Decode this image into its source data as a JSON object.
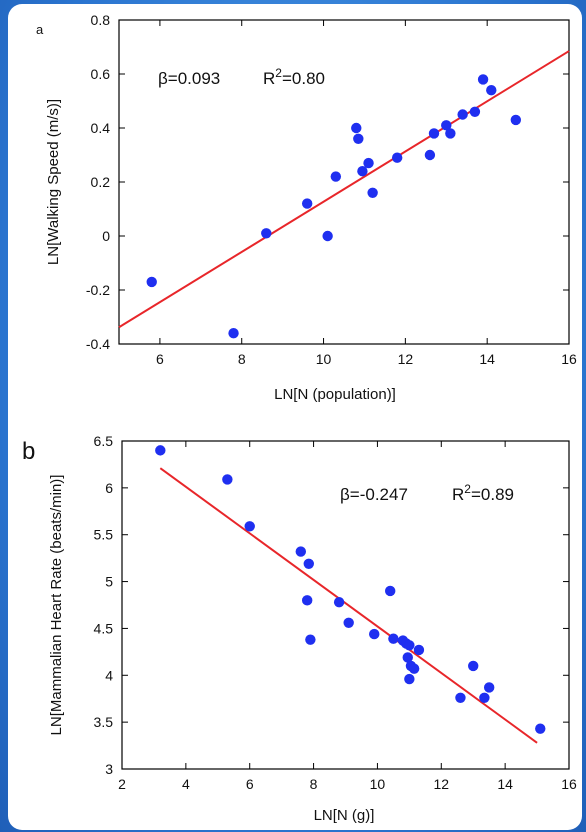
{
  "chart_data": [
    {
      "panel_label": "a",
      "type": "scatter",
      "xlabel": "LN[N (population)]",
      "ylabel": "LN[Walking Speed (m/s)]",
      "xlim": [
        5,
        16
      ],
      "ylim": [
        -0.4,
        0.8
      ],
      "xticks": [
        6,
        8,
        10,
        12,
        14,
        16
      ],
      "yticks": [
        -0.4,
        -0.2,
        0,
        0.2,
        0.4,
        0.6,
        0.8
      ],
      "annotation_beta": "β=0.093",
      "annotation_r2_prefix": "R",
      "annotation_r2_exp": "2",
      "annotation_r2_value": "=0.80",
      "point_color": "#1f2ff0",
      "line_color": "#e8262a",
      "fit_line": {
        "x": [
          5,
          16
        ],
        "y": [
          -0.338,
          0.685
        ]
      },
      "points": [
        {
          "x": 5.8,
          "y": -0.17
        },
        {
          "x": 7.8,
          "y": -0.36
        },
        {
          "x": 8.6,
          "y": 0.01
        },
        {
          "x": 9.6,
          "y": 0.12
        },
        {
          "x": 10.1,
          "y": 0.0
        },
        {
          "x": 10.3,
          "y": 0.22
        },
        {
          "x": 10.8,
          "y": 0.4
        },
        {
          "x": 10.85,
          "y": 0.36
        },
        {
          "x": 10.95,
          "y": 0.24
        },
        {
          "x": 11.1,
          "y": 0.27
        },
        {
          "x": 11.2,
          "y": 0.16
        },
        {
          "x": 11.8,
          "y": 0.29
        },
        {
          "x": 12.6,
          "y": 0.3
        },
        {
          "x": 12.7,
          "y": 0.38
        },
        {
          "x": 13.0,
          "y": 0.41
        },
        {
          "x": 13.1,
          "y": 0.38
        },
        {
          "x": 13.4,
          "y": 0.45
        },
        {
          "x": 13.7,
          "y": 0.46
        },
        {
          "x": 13.9,
          "y": 0.58
        },
        {
          "x": 14.1,
          "y": 0.54
        },
        {
          "x": 14.7,
          "y": 0.43
        }
      ]
    },
    {
      "panel_label": "b",
      "type": "scatter",
      "xlabel": "LN[N (g)]",
      "ylabel": "LN[Mammalian Heart Rate (beats/min)]",
      "xlim": [
        2,
        16
      ],
      "ylim": [
        3,
        6.5
      ],
      "xticks": [
        2,
        4,
        6,
        8,
        10,
        12,
        14,
        16
      ],
      "yticks": [
        3,
        3.5,
        4,
        4.5,
        5,
        5.5,
        6,
        6.5
      ],
      "annotation_beta": "β=-0.247",
      "annotation_r2_prefix": "R",
      "annotation_r2_exp": "2",
      "annotation_r2_value": "=0.89",
      "point_color": "#1f2ff0",
      "line_color": "#e8262a",
      "fit_line": {
        "x": [
          3.2,
          15.0
        ],
        "y": [
          6.21,
          3.28
        ]
      },
      "points": [
        {
          "x": 3.2,
          "y": 6.4
        },
        {
          "x": 5.3,
          "y": 6.09
        },
        {
          "x": 6.0,
          "y": 5.59
        },
        {
          "x": 7.6,
          "y": 5.32
        },
        {
          "x": 7.85,
          "y": 5.19
        },
        {
          "x": 7.8,
          "y": 4.8
        },
        {
          "x": 7.9,
          "y": 4.38
        },
        {
          "x": 8.8,
          "y": 4.78
        },
        {
          "x": 9.1,
          "y": 4.56
        },
        {
          "x": 9.9,
          "y": 4.44
        },
        {
          "x": 10.4,
          "y": 4.9
        },
        {
          "x": 10.5,
          "y": 4.39
        },
        {
          "x": 10.8,
          "y": 4.37
        },
        {
          "x": 10.9,
          "y": 4.34
        },
        {
          "x": 11.0,
          "y": 4.32
        },
        {
          "x": 10.95,
          "y": 4.19
        },
        {
          "x": 11.05,
          "y": 4.1
        },
        {
          "x": 11.15,
          "y": 4.07
        },
        {
          "x": 11.3,
          "y": 4.27
        },
        {
          "x": 11.0,
          "y": 3.96
        },
        {
          "x": 12.6,
          "y": 3.76
        },
        {
          "x": 13.0,
          "y": 4.1
        },
        {
          "x": 13.35,
          "y": 3.76
        },
        {
          "x": 13.5,
          "y": 3.87
        },
        {
          "x": 15.1,
          "y": 3.43
        }
      ]
    }
  ]
}
